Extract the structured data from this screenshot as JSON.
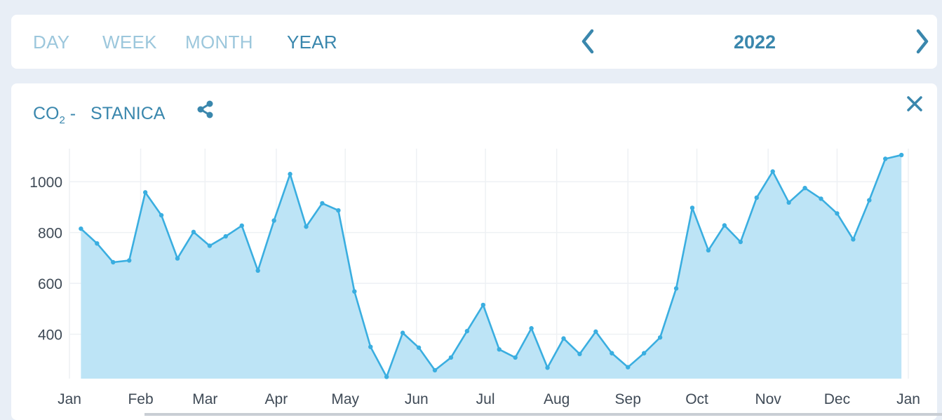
{
  "toolbar": {
    "periods": [
      "DAY",
      "WEEK",
      "MONTH",
      "YEAR"
    ],
    "active_period": "YEAR",
    "year": "2022",
    "icons": {
      "prev": "chevron-left-icon",
      "next": "chevron-right-icon"
    }
  },
  "card": {
    "title_prefix": "CO",
    "title_sub": "2",
    "title_suffix": " -   STANICA",
    "icons": {
      "share": "share-icon",
      "close": "close-icon"
    }
  },
  "colors": {
    "accent": "#3a87ad",
    "line": "#3aaee0",
    "area": "#bde4f6",
    "inactive": "#9cc7dc"
  },
  "chart_data": {
    "type": "area",
    "title": "",
    "xlabel": "",
    "ylabel": "",
    "x_ticks": [
      "Jan",
      "Feb",
      "Mar",
      "Apr",
      "May",
      "Jun",
      "Jul",
      "Aug",
      "Sep",
      "Oct",
      "Nov",
      "Dec",
      "Jan"
    ],
    "y_ticks": [
      400,
      600,
      800,
      1000
    ],
    "ylim": [
      225,
      1130
    ],
    "grid": true,
    "legend": "none",
    "series": [
      {
        "x": [
          "2022-01-06",
          "2022-01-13",
          "2022-01-20",
          "2022-01-27",
          "2022-02-03",
          "2022-02-10",
          "2022-02-17",
          "2022-02-24",
          "2022-03-03",
          "2022-03-10",
          "2022-03-17",
          "2022-03-24",
          "2022-03-31",
          "2022-04-07",
          "2022-04-14",
          "2022-04-21",
          "2022-04-28",
          "2022-05-05",
          "2022-05-12",
          "2022-05-19",
          "2022-05-26",
          "2022-06-02",
          "2022-06-09",
          "2022-06-16",
          "2022-06-23",
          "2022-06-30",
          "2022-07-07",
          "2022-07-14",
          "2022-07-21",
          "2022-07-28",
          "2022-08-04",
          "2022-08-11",
          "2022-08-18",
          "2022-08-25",
          "2022-09-01",
          "2022-09-08",
          "2022-09-15",
          "2022-09-22",
          "2022-09-29",
          "2022-10-06",
          "2022-10-13",
          "2022-10-20",
          "2022-10-27",
          "2022-11-03",
          "2022-11-10",
          "2022-11-17",
          "2022-11-24",
          "2022-12-01",
          "2022-12-08",
          "2022-12-15",
          "2022-12-22",
          "2022-12-29"
        ],
        "values": [
          815,
          757,
          683,
          690,
          958,
          868,
          698,
          802,
          748,
          785,
          827,
          650,
          847,
          1030,
          823,
          915,
          887,
          568,
          350,
          232,
          405,
          347,
          258,
          308,
          412,
          515,
          340,
          308,
          423,
          268,
          383,
          322,
          410,
          325,
          270,
          325,
          387,
          580,
          897,
          730,
          828,
          763,
          937,
          1040,
          918,
          975,
          933,
          875,
          773,
          927,
          1090,
          1105
        ]
      }
    ]
  }
}
